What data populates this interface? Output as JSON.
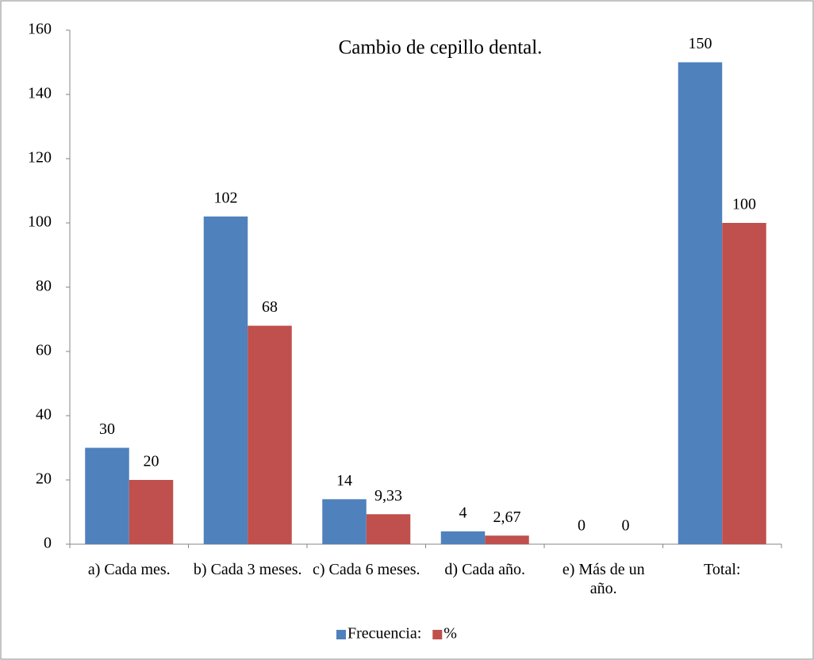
{
  "chart_data": {
    "type": "bar",
    "title": "Cambio de cepillo dental.",
    "categories": [
      "a) Cada mes.",
      "b) Cada 3 meses.",
      "c) Cada 6 meses.",
      "d) Cada año.",
      "e) Más de un año.",
      "Total:"
    ],
    "series": [
      {
        "name": "Frecuencia:",
        "color": "#4f81bd",
        "values": [
          30,
          102,
          14,
          4,
          0,
          150
        ]
      },
      {
        "name": "%",
        "color": "#c0504d",
        "values": [
          20,
          68,
          9.33,
          2.67,
          0,
          100
        ],
        "value_labels": [
          "20",
          "68",
          "9,33",
          "2,67",
          "0",
          "100"
        ]
      }
    ],
    "ylim": [
      0,
      160
    ],
    "yticks": [
      0,
      20,
      40,
      60,
      80,
      100,
      120,
      140,
      160
    ],
    "grid": false,
    "legend": "bottom"
  }
}
